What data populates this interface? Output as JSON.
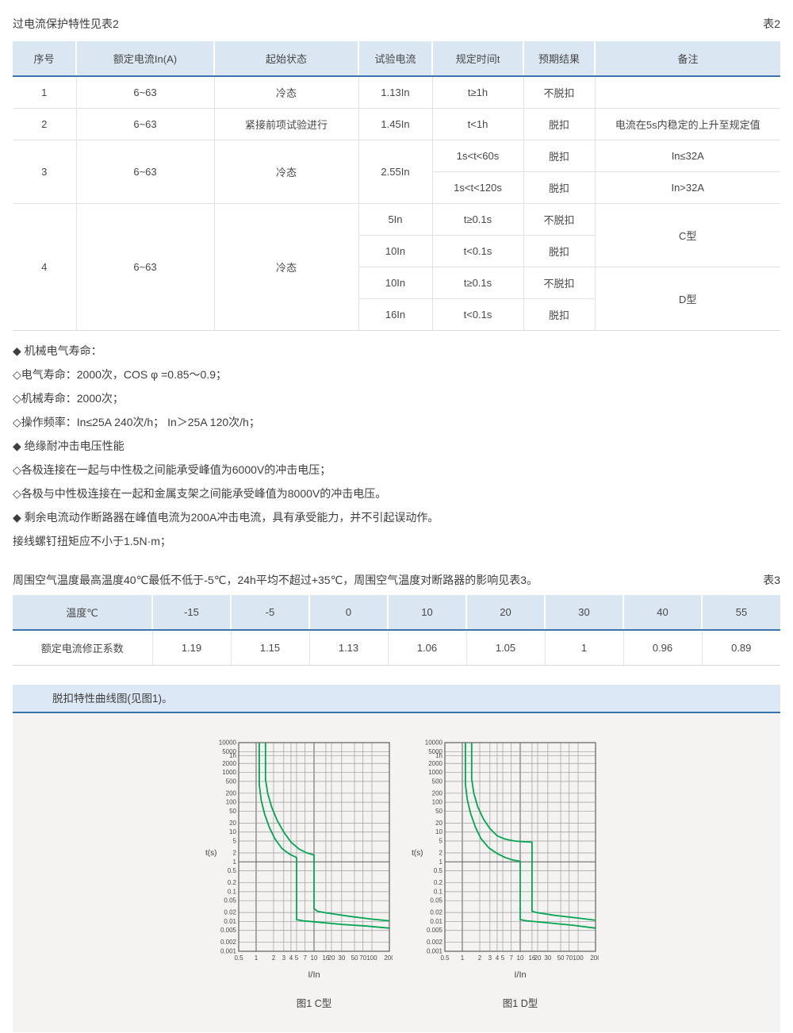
{
  "page": {
    "title": "过电流保护特性见表2",
    "table2_tag": "表2",
    "table3_tag": "表3"
  },
  "table2": {
    "headers": [
      "序号",
      "额定电流In(A)",
      "起始状态",
      "试验电流",
      "规定时间t",
      "预期结果",
      "备注"
    ],
    "row1": {
      "no": "1",
      "current": "6~63",
      "state": "冷态",
      "test": "1.13In",
      "time": "t≥1h",
      "result": "不脱扣",
      "note": ""
    },
    "row2": {
      "no": "2",
      "current": "6~63",
      "state": "紧接前项试验进行",
      "test": "1.45In",
      "time": "t<1h",
      "result": "脱扣",
      "note": "电流在5s内稳定的上升至规定值"
    },
    "row3": {
      "no": "3",
      "current": "6~63",
      "state": "冷态",
      "test": "2.55In",
      "sub1": {
        "time": "1s<t<60s",
        "result": "脱扣",
        "note": "In≤32A"
      },
      "sub2": {
        "time": "1s<t<120s",
        "result": "脱扣",
        "note": "In>32A"
      }
    },
    "row4": {
      "no": "4",
      "current": "6~63",
      "state": "冷态",
      "sub1": {
        "test": "5In",
        "time": "t≥0.1s",
        "result": "不脱扣"
      },
      "sub2": {
        "test": "10In",
        "time": "t<0.1s",
        "result": "脱扣"
      },
      "sub3": {
        "test": "10In",
        "time": "t≥0.1s",
        "result": "不脱扣"
      },
      "sub4": {
        "test": "16In",
        "time": "t<0.1s",
        "result": "脱扣"
      },
      "note_c": "C型",
      "note_d": "D型"
    }
  },
  "bullets": [
    "◆ 机械电气寿命：",
    "◇电气寿命：2000次，COS φ =0.85～0.9；",
    "◇机械寿命：2000次；",
    "◇操作频率：In≤25A 240次/h； In＞25A 120次/h；",
    "◆ 绝缘耐冲击电压性能",
    "◇各极连接在一起与中性极之间能承受峰值为6000V的冲击电压；",
    "◇各极与中性极连接在一起和金属支架之间能承受峰值为8000V的冲击电压。",
    "◆ 剩余电流动作断路器在峰值电流为200A冲击电流，具有承受能力，并不引起误动作。",
    "接线螺钉扭矩应不小于1.5N·m；"
  ],
  "table3_intro": "周围空气温度最高温度40℃最低不低于-5℃，24h平均不超过+35℃，周围空气温度对断路器的影响见表3。",
  "table3": {
    "col0": "温度℃",
    "temps": [
      "-15",
      "-5",
      "0",
      "10",
      "20",
      "30",
      "40",
      "55"
    ],
    "row_label": "额定电流修正系数",
    "values": [
      "1.19",
      "1.15",
      "1.13",
      "1.06",
      "1.05",
      "1",
      "0.96",
      "0.89"
    ]
  },
  "panel": {
    "header": "脱扣特性曲线图(见图1)。"
  },
  "chart_data": [
    {
      "type": "line",
      "title": "图1 C型",
      "xlabel": "I/In",
      "ylabel": "t(s)",
      "xlim": [
        0.5,
        200
      ],
      "ylim": [
        0.001,
        10000
      ],
      "x_ticks": [
        0.5,
        1,
        2,
        3,
        4,
        5,
        7,
        10,
        16,
        20,
        30,
        50,
        70,
        100,
        200
      ],
      "y_ticks": [
        10000,
        5000,
        3600,
        2000,
        1000,
        500,
        200,
        100,
        50,
        20,
        10,
        5,
        2,
        1,
        0.5,
        0.2,
        0.1,
        0.05,
        0.02,
        0.01,
        0.005,
        0.002,
        0.001
      ],
      "y_tick_labels": [
        "10000",
        "5000",
        "1h",
        "2000",
        "1000",
        "500",
        "200",
        "100",
        "50",
        "20",
        "10",
        "5",
        "2",
        "1",
        "0.5",
        "0.2",
        "0.1",
        "0.05",
        "0.02",
        "0.01",
        "0.005",
        "0.002",
        "0.001"
      ],
      "grid": true,
      "color": "#00a651",
      "series": [
        {
          "name": "lower-limit",
          "points": [
            [
              1.13,
              10000
            ],
            [
              1.13,
              400
            ],
            [
              1.22,
              120
            ],
            [
              1.4,
              40
            ],
            [
              1.7,
              14
            ],
            [
              2.1,
              6
            ],
            [
              2.8,
              2.8
            ],
            [
              3.8,
              1.8
            ],
            [
              5,
              1.4
            ],
            [
              5,
              0.0115
            ],
            [
              6.5,
              0.0105
            ],
            [
              10,
              0.0098
            ],
            [
              30,
              0.008
            ],
            [
              80,
              0.007
            ],
            [
              200,
              0.006
            ]
          ]
        },
        {
          "name": "upper-limit",
          "points": [
            [
              1.45,
              10000
            ],
            [
              1.45,
              600
            ],
            [
              1.58,
              200
            ],
            [
              1.85,
              70
            ],
            [
              2.3,
              25
            ],
            [
              3,
              10
            ],
            [
              4,
              4.6
            ],
            [
              5.5,
              2.7
            ],
            [
              7.5,
              2
            ],
            [
              10,
              1.7
            ],
            [
              10,
              0.027
            ],
            [
              11.5,
              0.022
            ],
            [
              16,
              0.0195
            ],
            [
              40,
              0.015
            ],
            [
              100,
              0.012
            ],
            [
              200,
              0.0105
            ]
          ]
        }
      ]
    },
    {
      "type": "line",
      "title": "图1 D型",
      "xlabel": "I/In",
      "ylabel": "t(s)",
      "xlim": [
        0.5,
        200
      ],
      "ylim": [
        0.001,
        10000
      ],
      "x_ticks": [
        0.5,
        1,
        2,
        3,
        4,
        5,
        7,
        10,
        16,
        20,
        30,
        50,
        70,
        100,
        200
      ],
      "y_ticks": [
        10000,
        5000,
        3600,
        2000,
        1000,
        500,
        200,
        100,
        50,
        20,
        10,
        5,
        2,
        1,
        0.5,
        0.2,
        0.1,
        0.05,
        0.02,
        0.01,
        0.005,
        0.002,
        0.001
      ],
      "y_tick_labels": [
        "10000",
        "5000",
        "1h",
        "2000",
        "1000",
        "500",
        "200",
        "100",
        "50",
        "20",
        "10",
        "5",
        "2",
        "1",
        "0.5",
        "0.2",
        "0.1",
        "0.05",
        "0.02",
        "0.01",
        "0.005",
        "0.002",
        "0.001"
      ],
      "grid": true,
      "color": "#00a651",
      "series": [
        {
          "name": "lower-limit",
          "points": [
            [
              1.13,
              10000
            ],
            [
              1.13,
              400
            ],
            [
              1.22,
              120
            ],
            [
              1.4,
              40
            ],
            [
              1.7,
              14
            ],
            [
              2.1,
              6
            ],
            [
              2.9,
              2.9
            ],
            [
              4,
              1.9
            ],
            [
              5.5,
              1.4
            ],
            [
              7.5,
              1.15
            ],
            [
              10,
              1.05
            ],
            [
              10,
              0.0115
            ],
            [
              13,
              0.0105
            ],
            [
              30,
              0.009
            ],
            [
              80,
              0.0075
            ],
            [
              200,
              0.006
            ]
          ]
        },
        {
          "name": "upper-limit",
          "points": [
            [
              1.45,
              10000
            ],
            [
              1.45,
              600
            ],
            [
              1.58,
              200
            ],
            [
              1.85,
              70
            ],
            [
              2.3,
              28
            ],
            [
              3,
              13
            ],
            [
              4,
              7.5
            ],
            [
              5.5,
              5.8
            ],
            [
              8,
              5
            ],
            [
              12,
              4.7
            ],
            [
              16,
              4.6
            ],
            [
              16,
              0.022
            ],
            [
              19,
              0.02
            ],
            [
              40,
              0.016
            ],
            [
              100,
              0.013
            ],
            [
              200,
              0.011
            ]
          ]
        }
      ]
    }
  ]
}
